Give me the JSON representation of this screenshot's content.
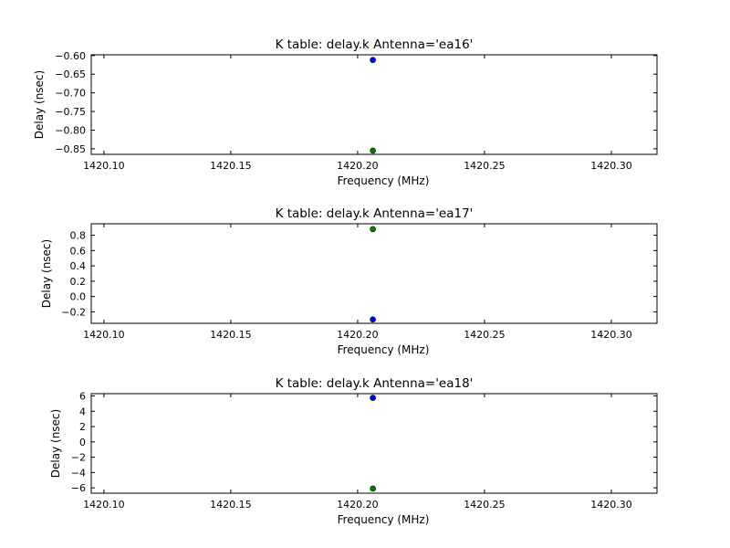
{
  "figure": {
    "background": "#ffffff",
    "series_colors": [
      "#0000ff",
      "#008000"
    ]
  },
  "chart_data": [
    {
      "type": "scatter",
      "title": "K table: delay.k      Antenna='ea16'",
      "xlabel": "Frequency (MHz)",
      "ylabel": "Delay (nsec)",
      "xlim": [
        1420.095,
        1420.318
      ],
      "ylim": [
        -0.865,
        -0.598
      ],
      "xticks": [
        1420.1,
        1420.15,
        1420.2,
        1420.25,
        1420.3
      ],
      "xtick_labels": [
        "1420.10",
        "1420.15",
        "1420.20",
        "1420.25",
        "1420.30"
      ],
      "yticks": [
        -0.85,
        -0.8,
        -0.75,
        -0.7,
        -0.65,
        -0.6
      ],
      "ytick_labels": [
        "−0.85",
        "−0.80",
        "−0.75",
        "−0.70",
        "−0.65",
        "−0.60"
      ],
      "grid": false,
      "series": [
        {
          "color": "#0000ff",
          "points": [
            {
              "x": 1420.206,
              "y": -0.612
            }
          ]
        },
        {
          "color": "#008000",
          "points": [
            {
              "x": 1420.206,
              "y": -0.855
            }
          ]
        }
      ]
    },
    {
      "type": "scatter",
      "title": "K table: delay.k      Antenna='ea17'",
      "xlabel": "Frequency (MHz)",
      "ylabel": "Delay (nsec)",
      "xlim": [
        1420.095,
        1420.318
      ],
      "ylim": [
        -0.35,
        0.95
      ],
      "xticks": [
        1420.1,
        1420.15,
        1420.2,
        1420.25,
        1420.3
      ],
      "xtick_labels": [
        "1420.10",
        "1420.15",
        "1420.20",
        "1420.25",
        "1420.30"
      ],
      "yticks": [
        -0.2,
        0.0,
        0.2,
        0.4,
        0.6,
        0.8
      ],
      "ytick_labels": [
        "−0.2",
        "0.0",
        "0.2",
        "0.4",
        "0.6",
        "0.8"
      ],
      "grid": false,
      "series": [
        {
          "color": "#0000ff",
          "points": [
            {
              "x": 1420.206,
              "y": -0.3
            }
          ]
        },
        {
          "color": "#008000",
          "points": [
            {
              "x": 1420.206,
              "y": 0.88
            }
          ]
        }
      ]
    },
    {
      "type": "scatter",
      "title": "K table: delay.k      Antenna='ea18'",
      "xlabel": "Frequency (MHz)",
      "ylabel": "Delay (nsec)",
      "xlim": [
        1420.095,
        1420.318
      ],
      "ylim": [
        -6.7,
        6.3
      ],
      "xticks": [
        1420.1,
        1420.15,
        1420.2,
        1420.25,
        1420.3
      ],
      "xtick_labels": [
        "1420.10",
        "1420.15",
        "1420.20",
        "1420.25",
        "1420.30"
      ],
      "yticks": [
        -6,
        -4,
        -2,
        0,
        2,
        4,
        6
      ],
      "ytick_labels": [
        "−6",
        "−4",
        "−2",
        "0",
        "2",
        "4",
        "6"
      ],
      "grid": false,
      "series": [
        {
          "color": "#0000ff",
          "points": [
            {
              "x": 1420.206,
              "y": 5.75
            }
          ]
        },
        {
          "color": "#008000",
          "points": [
            {
              "x": 1420.206,
              "y": -6.1
            }
          ]
        }
      ]
    }
  ]
}
